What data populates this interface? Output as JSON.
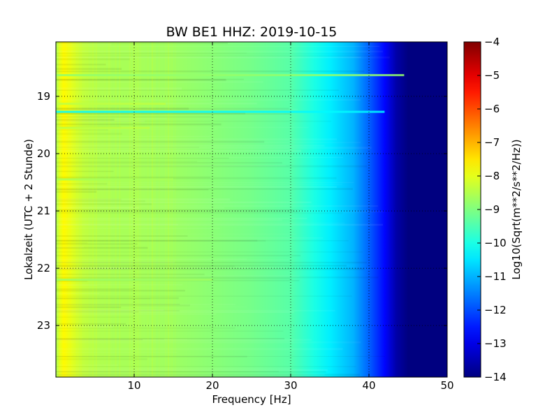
{
  "chart_data": {
    "type": "heatmap",
    "title": "BW BE1 HHZ: 2019-10-15",
    "xlabel": "Frequency [Hz]",
    "ylabel": "Lokalzeit (UTC + 2 Stunde)",
    "xlim": [
      0,
      50
    ],
    "ylim": [
      18.05,
      23.9
    ],
    "y_inverted": true,
    "grid": true,
    "xticks": [
      10,
      20,
      30,
      40,
      50
    ],
    "xtick_labels": [
      "10",
      "20",
      "30",
      "40",
      "50"
    ],
    "yticks": [
      19,
      20,
      21,
      22,
      23
    ],
    "ytick_labels": [
      "19",
      "20",
      "21",
      "22",
      "23"
    ],
    "colorbar": {
      "label": "Log10(Sqrt(m**2/s**2/Hz))",
      "colormap": "jet",
      "range": [
        -14,
        -4
      ],
      "ticks": [
        -4,
        -5,
        -6,
        -7,
        -8,
        -9,
        -10,
        -11,
        -12,
        -13,
        -14
      ],
      "tick_labels": [
        "−4",
        "−5",
        "−6",
        "−7",
        "−8",
        "−9",
        "−10",
        "−11",
        "−12",
        "−13",
        "−14"
      ]
    },
    "profile": {
      "frequency_hz": [
        0,
        0.5,
        1,
        2,
        3,
        5,
        8,
        10,
        15,
        20,
        25,
        30,
        33,
        35,
        38,
        40,
        42,
        43.5,
        45,
        50
      ],
      "log10_psd": [
        -8.6,
        -8.0,
        -7.7,
        -8.0,
        -8.3,
        -8.5,
        -8.6,
        -8.6,
        -8.7,
        -8.9,
        -9.1,
        -9.4,
        -10.0,
        -10.4,
        -11.0,
        -11.8,
        -12.7,
        -13.6,
        -14.0,
        -14.0
      ]
    },
    "events": [
      {
        "time": 18.63,
        "f_max_hz": 44.5,
        "level": -8.8
      },
      {
        "time": 19.13,
        "f_max_hz": 14,
        "level": -8.4
      },
      {
        "time": 19.27,
        "f_max_hz": 42,
        "level": -10.3
      },
      {
        "time": 19.55,
        "f_max_hz": 12,
        "level": -8.4
      },
      {
        "time": 20.45,
        "f_max_hz": 15,
        "level": -8.6
      },
      {
        "time": 22.2,
        "f_max_hz": 20,
        "level": -8.7
      }
    ]
  }
}
